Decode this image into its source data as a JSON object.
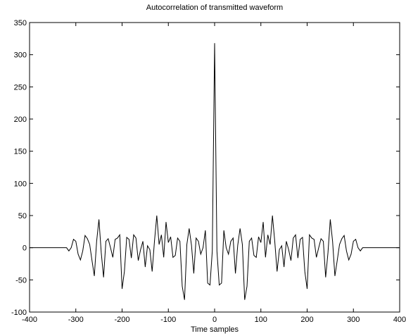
{
  "chart_data": {
    "type": "line",
    "title": "Autocorrelation of transmitted waveform",
    "xlabel": "Time samples",
    "ylabel": "",
    "xlim": [
      -400,
      400
    ],
    "ylim": [
      -100,
      350
    ],
    "xticks": [
      -400,
      -300,
      -200,
      -100,
      0,
      100,
      200,
      300,
      400
    ],
    "yticks": [
      -100,
      -50,
      0,
      50,
      100,
      150,
      200,
      250,
      300,
      350
    ],
    "grid": false,
    "legend": "none",
    "line_color": "#000000",
    "series": [
      {
        "x": [
          -400,
          -320,
          -315,
          -310,
          -305,
          -300,
          -295,
          -290,
          -285,
          -280,
          -275,
          -270,
          -265,
          -260,
          -255,
          -250,
          -245,
          -240,
          -235,
          -230,
          -225,
          -220,
          -215,
          -210,
          -205,
          -200,
          -195,
          -190,
          -185,
          -180,
          -175,
          -170,
          -165,
          -160,
          -155,
          -150,
          -145,
          -140,
          -135,
          -130,
          -125,
          -120,
          -115,
          -110,
          -105,
          -100,
          -95,
          -90,
          -85,
          -80,
          -75,
          -70,
          -65,
          -60,
          -55,
          -50,
          -45,
          -40,
          -35,
          -30,
          -25,
          -20,
          -15,
          -10,
          -5,
          0,
          5,
          10,
          15,
          20,
          25,
          30,
          35,
          40,
          45,
          50,
          55,
          60,
          65,
          70,
          75,
          80,
          85,
          90,
          95,
          100,
          105,
          110,
          115,
          120,
          125,
          130,
          135,
          140,
          145,
          150,
          155,
          160,
          165,
          170,
          175,
          180,
          185,
          190,
          195,
          200,
          205,
          210,
          215,
          220,
          225,
          230,
          235,
          240,
          245,
          250,
          255,
          260,
          265,
          270,
          275,
          280,
          285,
          290,
          295,
          300,
          305,
          310,
          315,
          320,
          400
        ],
        "values": [
          0,
          0,
          -5,
          0,
          13,
          10,
          -10,
          -19,
          -5,
          19,
          14,
          5,
          -20,
          -44,
          10,
          44,
          -8,
          -46,
          10,
          14,
          0,
          -15,
          13,
          15,
          20,
          -64,
          -37,
          16,
          13,
          -16,
          20,
          15,
          -20,
          -3,
          10,
          -30,
          3,
          -3,
          -37,
          10,
          50,
          5,
          20,
          -15,
          40,
          8,
          17,
          -15,
          -12,
          15,
          10,
          -60,
          -81,
          5,
          30,
          4,
          -40,
          15,
          10,
          -10,
          0,
          27,
          -55,
          -58,
          -5,
          318,
          -5,
          -58,
          -55,
          27,
          0,
          -10,
          10,
          15,
          -40,
          4,
          30,
          5,
          -81,
          -60,
          10,
          15,
          -12,
          -15,
          17,
          8,
          40,
          -15,
          20,
          5,
          50,
          10,
          -37,
          -3,
          3,
          -30,
          10,
          -3,
          -20,
          15,
          20,
          -16,
          13,
          16,
          -37,
          -64,
          20,
          15,
          13,
          -15,
          0,
          14,
          10,
          -46,
          -8,
          44,
          10,
          -44,
          -20,
          5,
          14,
          19,
          -5,
          -19,
          -10,
          10,
          13,
          0,
          -5,
          0,
          0
        ]
      }
    ]
  }
}
